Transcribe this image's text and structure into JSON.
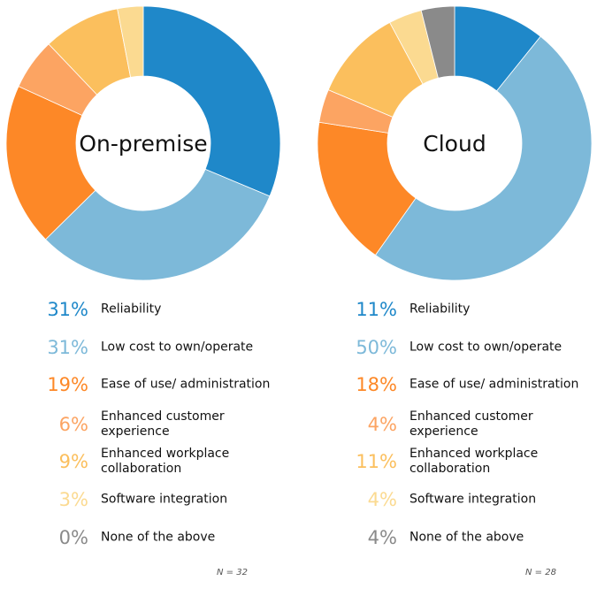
{
  "colors": {
    "reliability": "#1f88c9",
    "low_cost": "#7db9d9",
    "ease_of_use": "#fd8827",
    "enhanced_customer": "#fca462",
    "enhanced_workplace": "#fbbf5d",
    "software_integration": "#fbda91",
    "none": "#8a8a8a"
  },
  "chart_data": [
    {
      "type": "pie",
      "donut": true,
      "title": "On-premise",
      "n_label": "N = 32",
      "categories": [
        "Reliability",
        "Low cost to own/operate",
        "Ease of use/ administration",
        "Enhanced customer experience",
        "Enhanced workplace collaboration",
        "Software integration",
        "None of the above"
      ],
      "values": [
        31,
        31,
        19,
        6,
        9,
        3,
        0
      ],
      "labels": [
        "31%",
        "31%",
        "19%",
        "6%",
        "9%",
        "3%",
        "0%"
      ]
    },
    {
      "type": "pie",
      "donut": true,
      "title": "Cloud",
      "n_label": "N = 28",
      "categories": [
        "Reliability",
        "Low cost to own/operate",
        "Ease of use/ administration",
        "Enhanced customer experience",
        "Enhanced workplace collaboration",
        "Software integration",
        "None of the above"
      ],
      "values": [
        11,
        50,
        18,
        4,
        11,
        4,
        4
      ],
      "labels": [
        "11%",
        "50%",
        "18%",
        "4%",
        "11%",
        "4%",
        "4%"
      ]
    }
  ]
}
